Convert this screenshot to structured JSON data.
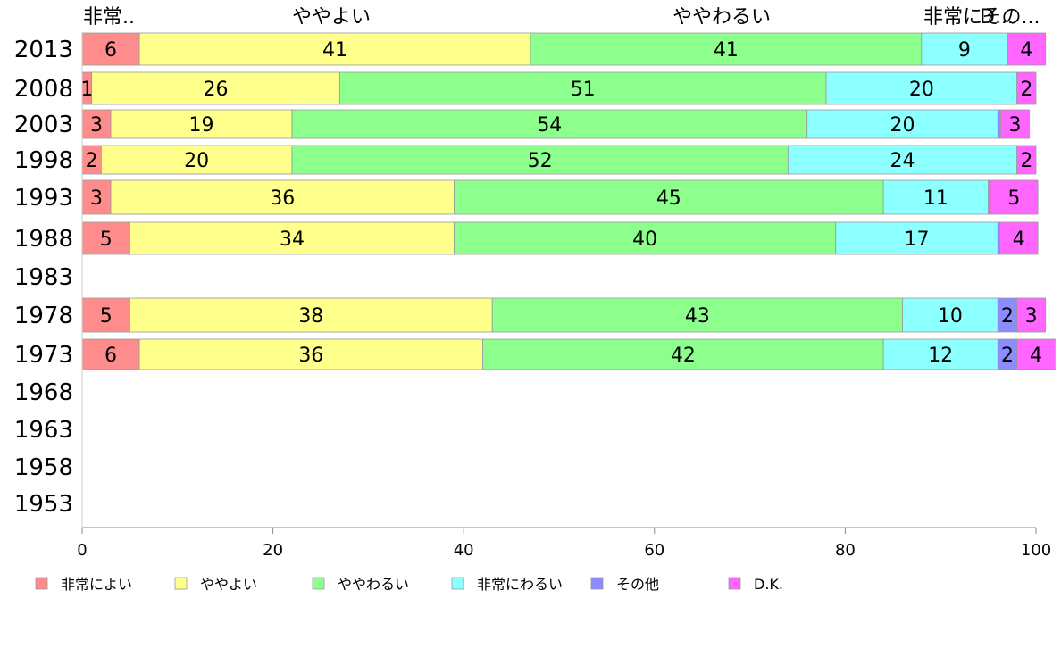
{
  "chart_data": {
    "type": "bar",
    "orientation": "horizontal",
    "stacked": true,
    "categories": [
      "2013",
      "2008",
      "2003",
      "1998",
      "1993",
      "1988",
      "1983",
      "1978",
      "1973",
      "1968",
      "1963",
      "1958",
      "1953"
    ],
    "top_labels": [
      "非常..",
      "ややよい",
      "ややわるい",
      "非常にその...",
      "D..."
    ],
    "series": [
      {
        "name": "非常によい",
        "color": "#ff8c8c",
        "values": [
          6,
          1,
          3,
          2,
          3,
          5,
          null,
          5,
          6,
          null,
          null,
          null,
          null
        ]
      },
      {
        "name": "ややよい",
        "color": "#ffff8c",
        "values": [
          41,
          26,
          19,
          20,
          36,
          34,
          null,
          38,
          36,
          null,
          null,
          null,
          null
        ]
      },
      {
        "name": "ややわるい",
        "color": "#8cff8c",
        "values": [
          41,
          51,
          54,
          52,
          45,
          40,
          null,
          43,
          42,
          null,
          null,
          null,
          null
        ]
      },
      {
        "name": "非常にわるい",
        "color": "#8cffff",
        "values": [
          9,
          20,
          20,
          24,
          11,
          17,
          null,
          10,
          12,
          null,
          null,
          null,
          null
        ]
      },
      {
        "name": "その他",
        "color": "#8c8cff",
        "values": [
          0,
          0,
          0.3,
          0,
          0.2,
          0.2,
          null,
          2,
          2,
          null,
          null,
          null,
          null
        ]
      },
      {
        "name": "D.K.",
        "color": "#ff66ff",
        "values": [
          4,
          2,
          3,
          2,
          5,
          4,
          null,
          3,
          4,
          null,
          null,
          null,
          null
        ]
      }
    ],
    "xlim": [
      0,
      100
    ],
    "xticks": [
      0,
      20,
      40,
      60,
      80,
      100
    ],
    "legend_position": "bottom",
    "grid": false
  }
}
